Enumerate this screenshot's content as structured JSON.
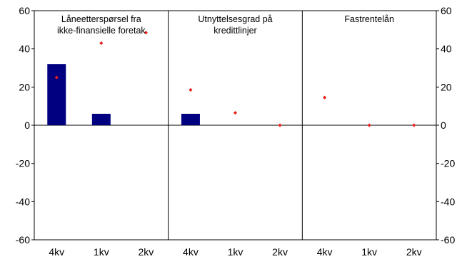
{
  "chart_data": {
    "type": "bar",
    "ylim": [
      -60,
      60
    ],
    "yticks": [
      60,
      40,
      20,
      0,
      -20,
      -40,
      -60
    ],
    "grid": false,
    "colors": {
      "bar": "#000080",
      "marker": "#e8201c"
    },
    "panels": [
      {
        "title_lines": [
          "Låneetterspørsel fra",
          "ikke-finansielle foretak"
        ],
        "categories": [
          "4kv",
          "1kv",
          "2kv"
        ],
        "bars": [
          32,
          6,
          null
        ],
        "markers": [
          25,
          43,
          48.5
        ]
      },
      {
        "title_lines": [
          "Utnyttelsesgrad på",
          "kredittlinjer"
        ],
        "categories": [
          "4kv",
          "1kv",
          "2kv"
        ],
        "bars": [
          6,
          null,
          null
        ],
        "markers": [
          18.5,
          6.5,
          0
        ]
      },
      {
        "title_lines": [
          "Fastrentelån"
        ],
        "categories": [
          "4kv",
          "1kv",
          "2kv"
        ],
        "bars": [
          null,
          null,
          null
        ],
        "markers": [
          14.5,
          0,
          0
        ]
      }
    ]
  }
}
